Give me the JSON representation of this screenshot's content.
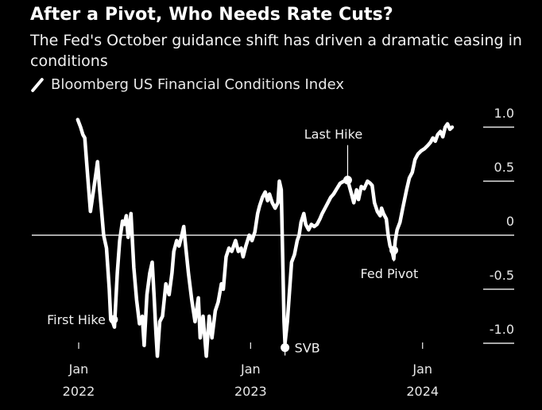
{
  "header": {
    "title": "After a Pivot, Who Needs Rate Cuts?",
    "subtitle": "The Fed's October guidance shift has driven a dramatic easing in conditions"
  },
  "legend": {
    "icon": "line-swatch-icon",
    "label": "Bloomberg US Financial Conditions Index"
  },
  "colors": {
    "background": "#000000",
    "line": "#ffffff",
    "axis": "#ffffff",
    "text": "#e8e8e8"
  },
  "chart_data": {
    "type": "line",
    "title": "After a Pivot, Who Needs Rate Cuts?",
    "subtitle": "The Fed's October guidance shift has driven a dramatic easing in conditions",
    "xlabel": "",
    "ylabel": "",
    "x_range": [
      "2021-12-28",
      "2024-03-05"
    ],
    "ylim": [
      -1.25,
      1.15
    ],
    "y_ticks": [
      1.0,
      0.5,
      0,
      -0.5,
      -1.0
    ],
    "y_tick_labels": [
      "1.0",
      "0.5",
      "0",
      "-0.5",
      "-1.0"
    ],
    "y_axis_side": "right",
    "x_ticks": [
      {
        "date": "2022-01-01",
        "label_top": "Jan",
        "label_bottom": "2022"
      },
      {
        "date": "2023-01-01",
        "label_top": "Jan",
        "label_bottom": "2023"
      },
      {
        "date": "2024-01-01",
        "label_top": "Jan",
        "label_bottom": "2024"
      }
    ],
    "grid": false,
    "zero_line": true,
    "legend": "top-left",
    "series": [
      {
        "name": "Bloomberg US Financial Conditions Index",
        "points": [
          [
            "2021-12-30",
            1.07
          ],
          [
            "2022-01-05",
            1.0
          ],
          [
            "2022-01-10",
            0.93
          ],
          [
            "2022-01-14",
            0.9
          ],
          [
            "2022-01-20",
            0.55
          ],
          [
            "2022-01-26",
            0.22
          ],
          [
            "2022-02-01",
            0.4
          ],
          [
            "2022-02-07",
            0.58
          ],
          [
            "2022-02-10",
            0.68
          ],
          [
            "2022-02-14",
            0.45
          ],
          [
            "2022-02-18",
            0.25
          ],
          [
            "2022-02-23",
            0.0
          ],
          [
            "2022-03-01",
            -0.12
          ],
          [
            "2022-03-07",
            -0.5
          ],
          [
            "2022-03-10",
            -0.78
          ],
          [
            "2022-03-14",
            -0.8
          ],
          [
            "2022-03-18",
            -0.85
          ],
          [
            "2022-03-24",
            -0.35
          ],
          [
            "2022-03-29",
            -0.05
          ],
          [
            "2022-04-04",
            0.13
          ],
          [
            "2022-04-08",
            0.1
          ],
          [
            "2022-04-12",
            0.18
          ],
          [
            "2022-04-16",
            -0.02
          ],
          [
            "2022-04-22",
            0.2
          ],
          [
            "2022-04-28",
            -0.3
          ],
          [
            "2022-05-04",
            -0.6
          ],
          [
            "2022-05-10",
            -0.82
          ],
          [
            "2022-05-16",
            -0.75
          ],
          [
            "2022-05-20",
            -1.02
          ],
          [
            "2022-05-26",
            -0.55
          ],
          [
            "2022-06-01",
            -0.35
          ],
          [
            "2022-06-06",
            -0.25
          ],
          [
            "2022-06-10",
            -0.55
          ],
          [
            "2022-06-14",
            -0.9
          ],
          [
            "2022-06-17",
            -1.12
          ],
          [
            "2022-06-22",
            -0.8
          ],
          [
            "2022-06-28",
            -0.75
          ],
          [
            "2022-07-05",
            -0.45
          ],
          [
            "2022-07-12",
            -0.55
          ],
          [
            "2022-07-18",
            -0.35
          ],
          [
            "2022-07-22",
            -0.15
          ],
          [
            "2022-07-28",
            -0.05
          ],
          [
            "2022-08-02",
            -0.1
          ],
          [
            "2022-08-08",
            0.0
          ],
          [
            "2022-08-12",
            0.08
          ],
          [
            "2022-08-16",
            -0.1
          ],
          [
            "2022-08-22",
            -0.35
          ],
          [
            "2022-08-29",
            -0.6
          ],
          [
            "2022-09-05",
            -0.8
          ],
          [
            "2022-09-12",
            -0.58
          ],
          [
            "2022-09-16",
            -0.95
          ],
          [
            "2022-09-22",
            -0.75
          ],
          [
            "2022-09-29",
            -1.12
          ],
          [
            "2022-10-05",
            -0.75
          ],
          [
            "2022-10-11",
            -0.95
          ],
          [
            "2022-10-18",
            -0.7
          ],
          [
            "2022-10-24",
            -0.62
          ],
          [
            "2022-10-31",
            -0.45
          ],
          [
            "2022-11-04",
            -0.5
          ],
          [
            "2022-11-10",
            -0.2
          ],
          [
            "2022-11-16",
            -0.12
          ],
          [
            "2022-11-22",
            -0.15
          ],
          [
            "2022-11-30",
            -0.05
          ],
          [
            "2022-12-06",
            -0.15
          ],
          [
            "2022-12-12",
            -0.12
          ],
          [
            "2022-12-16",
            -0.2
          ],
          [
            "2022-12-22",
            -0.1
          ],
          [
            "2022-12-29",
            0.0
          ],
          [
            "2023-01-04",
            -0.05
          ],
          [
            "2023-01-10",
            0.03
          ],
          [
            "2023-01-16",
            0.2
          ],
          [
            "2023-01-20",
            0.27
          ],
          [
            "2023-01-26",
            0.35
          ],
          [
            "2023-02-01",
            0.4
          ],
          [
            "2023-02-06",
            0.32
          ],
          [
            "2023-02-10",
            0.38
          ],
          [
            "2023-02-16",
            0.3
          ],
          [
            "2023-02-22",
            0.25
          ],
          [
            "2023-02-28",
            0.3
          ],
          [
            "2023-03-03",
            0.5
          ],
          [
            "2023-03-07",
            0.42
          ],
          [
            "2023-03-10",
            -0.2
          ],
          [
            "2023-03-13",
            -0.8
          ],
          [
            "2023-03-15",
            -1.0
          ],
          [
            "2023-03-20",
            -0.8
          ],
          [
            "2023-03-24",
            -0.55
          ],
          [
            "2023-03-29",
            -0.25
          ],
          [
            "2023-04-04",
            -0.18
          ],
          [
            "2023-04-10",
            -0.05
          ],
          [
            "2023-04-14",
            0.0
          ],
          [
            "2023-04-18",
            0.12
          ],
          [
            "2023-04-24",
            0.2
          ],
          [
            "2023-04-28",
            0.1
          ],
          [
            "2023-05-04",
            0.05
          ],
          [
            "2023-05-10",
            0.1
          ],
          [
            "2023-05-16",
            0.08
          ],
          [
            "2023-05-22",
            0.1
          ],
          [
            "2023-05-28",
            0.15
          ],
          [
            "2023-06-02",
            0.2
          ],
          [
            "2023-06-08",
            0.25
          ],
          [
            "2023-06-14",
            0.3
          ],
          [
            "2023-06-20",
            0.35
          ],
          [
            "2023-06-26",
            0.38
          ],
          [
            "2023-07-03",
            0.43
          ],
          [
            "2023-07-10",
            0.48
          ],
          [
            "2023-07-18",
            0.5
          ],
          [
            "2023-07-26",
            0.51
          ],
          [
            "2023-08-02",
            0.4
          ],
          [
            "2023-08-08",
            0.3
          ],
          [
            "2023-08-14",
            0.42
          ],
          [
            "2023-08-18",
            0.33
          ],
          [
            "2023-08-24",
            0.45
          ],
          [
            "2023-08-30",
            0.43
          ],
          [
            "2023-09-06",
            0.5
          ],
          [
            "2023-09-12",
            0.48
          ],
          [
            "2023-09-16",
            0.46
          ],
          [
            "2023-09-21",
            0.3
          ],
          [
            "2023-09-27",
            0.22
          ],
          [
            "2023-10-03",
            0.18
          ],
          [
            "2023-10-06",
            0.25
          ],
          [
            "2023-10-10",
            0.2
          ],
          [
            "2023-10-16",
            0.15
          ],
          [
            "2023-10-20",
            0.0
          ],
          [
            "2023-10-24",
            -0.1
          ],
          [
            "2023-10-28",
            -0.14
          ],
          [
            "2023-11-01",
            -0.22
          ],
          [
            "2023-11-04",
            -0.05
          ],
          [
            "2023-11-08",
            0.05
          ],
          [
            "2023-11-14",
            0.12
          ],
          [
            "2023-11-20",
            0.25
          ],
          [
            "2023-11-28",
            0.42
          ],
          [
            "2023-12-04",
            0.53
          ],
          [
            "2023-12-10",
            0.58
          ],
          [
            "2023-12-16",
            0.7
          ],
          [
            "2023-12-22",
            0.75
          ],
          [
            "2023-12-29",
            0.78
          ],
          [
            "2024-01-05",
            0.8
          ],
          [
            "2024-01-12",
            0.83
          ],
          [
            "2024-01-18",
            0.86
          ],
          [
            "2024-01-23",
            0.9
          ],
          [
            "2024-01-28",
            0.87
          ],
          [
            "2024-02-02",
            0.93
          ],
          [
            "2024-02-08",
            0.96
          ],
          [
            "2024-02-13",
            0.91
          ],
          [
            "2024-02-18",
            1.0
          ],
          [
            "2024-02-23",
            1.03
          ],
          [
            "2024-02-28",
            0.98
          ],
          [
            "2024-03-04",
            1.0
          ]
        ]
      }
    ],
    "annotations": [
      {
        "label": "First Hike",
        "date": "2022-03-16",
        "value": -0.78,
        "label_side": "left"
      },
      {
        "label": "SVB",
        "date": "2023-03-15",
        "value": -1.04,
        "label_side": "right"
      },
      {
        "label": "Last Hike",
        "date": "2023-07-26",
        "value": 0.51,
        "label_side": "above"
      },
      {
        "label": "Fed Pivot",
        "date": "2023-11-01",
        "value": -0.14,
        "label_side": "below"
      }
    ]
  }
}
